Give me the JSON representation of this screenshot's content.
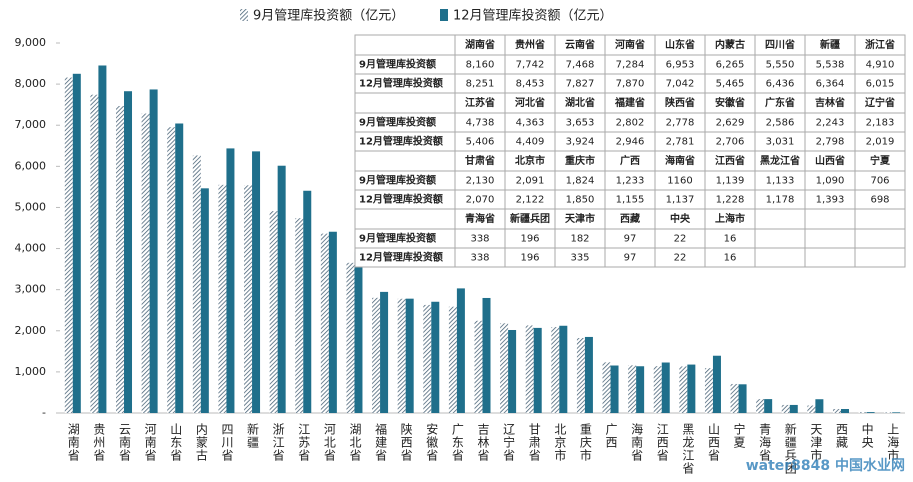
{
  "chart_data": {
    "type": "bar",
    "categories": [
      "湖南省",
      "贵州省",
      "云南省",
      "河南省",
      "山东省",
      "内蒙古",
      "四川省",
      "新疆",
      "浙江省",
      "江苏省",
      "河北省",
      "湖北省",
      "福建省",
      "陕西省",
      "安徽省",
      "广东省",
      "吉林省",
      "辽宁省",
      "甘肃省",
      "北京市",
      "重庆市",
      "广西",
      "海南省",
      "江西省",
      "黑龙江省",
      "山西省",
      "宁夏",
      "青海省",
      "新疆兵团",
      "天津市",
      "西藏",
      "中央",
      "上海市"
    ],
    "series": [
      {
        "name": "9月管理库投资额（亿元）",
        "color": "#4a6478",
        "pattern": "hatch",
        "values": [
          8160,
          7742,
          7468,
          7284,
          6953,
          6265,
          5550,
          5538,
          4910,
          4738,
          4363,
          3653,
          2802,
          2778,
          2629,
          2586,
          2243,
          2183,
          2130,
          2091,
          1824,
          1233,
          1160,
          1139,
          1133,
          1090,
          706,
          338,
          196,
          182,
          97,
          22,
          16
        ],
        "value_labels": [
          "8,160",
          "7,742",
          "7,468",
          "7,284",
          "6,953",
          "6,265",
          "5,550",
          "5,538",
          "4,910",
          "4,738",
          "4,363",
          "3,653",
          "2,802",
          "2,778",
          "2,629",
          "2,586",
          "2,243",
          "2,183",
          "2,130",
          "2,091",
          "1,824",
          "1,233",
          "1160",
          "1,139",
          "1,133",
          "1,090",
          "706",
          "338",
          "196",
          "182",
          "97",
          "22",
          "16"
        ]
      },
      {
        "name": "12月管理库投资额（亿元）",
        "color": "#1f6f8b",
        "pattern": "solid",
        "values": [
          8251,
          8453,
          7827,
          7870,
          7042,
          5465,
          6436,
          6364,
          6015,
          5406,
          4409,
          3924,
          2946,
          2781,
          2706,
          3031,
          2798,
          2019,
          2070,
          2122,
          1850,
          1155,
          1137,
          1228,
          1178,
          1393,
          698,
          338,
          196,
          335,
          97,
          22,
          16
        ],
        "value_labels": [
          "8,251",
          "8,453",
          "7,827",
          "7,870",
          "7,042",
          "5,465",
          "6,436",
          "6,364",
          "6,015",
          "5,406",
          "4,409",
          "3,924",
          "2,946",
          "2,781",
          "2,706",
          "3,031",
          "2,798",
          "2,019",
          "2,070",
          "2,122",
          "1,850",
          "1,155",
          "1,137",
          "1,228",
          "1,178",
          "1,393",
          "698",
          "338",
          "196",
          "335",
          "97",
          "22",
          "16"
        ]
      }
    ],
    "ylim": [
      0,
      9000
    ],
    "yticks": [
      {
        "value": 0,
        "label": "-"
      },
      {
        "value": 1000,
        "label": "1,000"
      },
      {
        "value": 2000,
        "label": "2,000"
      },
      {
        "value": 3000,
        "label": "3,000"
      },
      {
        "value": 4000,
        "label": "4,000"
      },
      {
        "value": 5000,
        "label": "5,000"
      },
      {
        "value": 6000,
        "label": "6,000"
      },
      {
        "value": 7000,
        "label": "7,000"
      },
      {
        "value": 8000,
        "label": "8,000"
      },
      {
        "value": 9000,
        "label": "9,000"
      }
    ],
    "grid": false,
    "legend": "top",
    "table": {
      "row_labels": [
        "9月管理库投资额",
        "12月管理库投资额"
      ],
      "columns_per_group": 9
    },
    "watermark": "water8848 中国水业网"
  }
}
